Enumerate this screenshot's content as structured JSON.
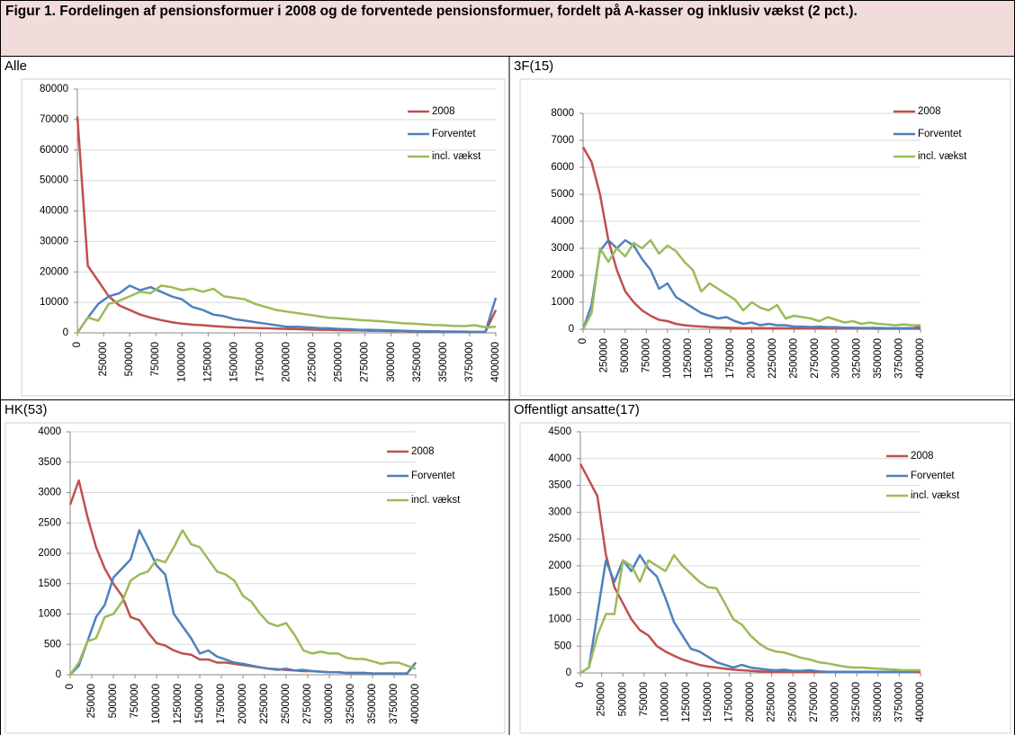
{
  "figure_title": "Figur 1. Fordelingen af pensionsformuer i 2008 og de forventede pensionsformuer, fordelt på A-kasser og inklusiv vækst (2 pct.).",
  "chart_data": [
    {
      "type": "line",
      "title": "Alle",
      "grid": true,
      "legend": "right",
      "x": [
        0,
        100000,
        200000,
        300000,
        400000,
        500000,
        600000,
        700000,
        800000,
        900000,
        1000000,
        1100000,
        1200000,
        1300000,
        1400000,
        1500000,
        1600000,
        1700000,
        1800000,
        1900000,
        2000000,
        2100000,
        2200000,
        2300000,
        2400000,
        2500000,
        2600000,
        2700000,
        2800000,
        2900000,
        3000000,
        3100000,
        3200000,
        3300000,
        3400000,
        3500000,
        3600000,
        3700000,
        3800000,
        3900000,
        4000000
      ],
      "xlim": [
        0,
        4000000
      ],
      "xticks": [
        0,
        250000,
        500000,
        750000,
        1000000,
        1250000,
        1500000,
        1750000,
        2000000,
        2250000,
        2500000,
        2750000,
        3000000,
        3250000,
        3500000,
        3750000,
        4000000
      ],
      "ylim": [
        0,
        80000
      ],
      "yticks": [
        0,
        10000,
        20000,
        30000,
        40000,
        50000,
        60000,
        70000,
        80000
      ],
      "series": [
        {
          "name": "2008",
          "color": "#c0504d",
          "values": [
            71000,
            22000,
            17000,
            12000,
            9000,
            7500,
            6000,
            5000,
            4200,
            3500,
            3000,
            2700,
            2500,
            2200,
            2000,
            1800,
            1700,
            1600,
            1500,
            1400,
            1300,
            1200,
            1100,
            1000,
            1000,
            900,
            800,
            800,
            700,
            700,
            600,
            600,
            500,
            500,
            500,
            400,
            400,
            400,
            300,
            300,
            7500
          ]
        },
        {
          "name": "Forventet",
          "color": "#4f81bd",
          "values": [
            0,
            5000,
            9500,
            12000,
            13000,
            15500,
            14000,
            15000,
            13500,
            12000,
            11000,
            8500,
            7500,
            6000,
            5500,
            4500,
            4000,
            3500,
            3000,
            2500,
            2000,
            2000,
            1800,
            1600,
            1500,
            1300,
            1200,
            1000,
            1000,
            900,
            800,
            700,
            600,
            500,
            500,
            400,
            400,
            300,
            300,
            300,
            11500
          ]
        },
        {
          "name": "incl. vækst",
          "color": "#9bbb59",
          "values": [
            0,
            5000,
            4000,
            9500,
            10500,
            12000,
            13500,
            13000,
            15500,
            15000,
            14000,
            14500,
            13500,
            14500,
            12000,
            11500,
            11000,
            9500,
            8500,
            7500,
            7000,
            6500,
            6000,
            5500,
            5000,
            4800,
            4500,
            4200,
            4000,
            3800,
            3500,
            3200,
            3000,
            2800,
            2600,
            2500,
            2300,
            2200,
            2500,
            1800,
            2000
          ]
        }
      ]
    },
    {
      "type": "line",
      "title": "3F(15)",
      "grid": true,
      "legend": "right",
      "x": [
        0,
        100000,
        200000,
        300000,
        400000,
        500000,
        600000,
        700000,
        800000,
        900000,
        1000000,
        1100000,
        1200000,
        1300000,
        1400000,
        1500000,
        1600000,
        1700000,
        1800000,
        1900000,
        2000000,
        2100000,
        2200000,
        2300000,
        2400000,
        2500000,
        2600000,
        2700000,
        2800000,
        2900000,
        3000000,
        3100000,
        3200000,
        3300000,
        3400000,
        3500000,
        3600000,
        3700000,
        3800000,
        3900000,
        4000000
      ],
      "xlim": [
        0,
        4000000
      ],
      "xticks": [
        0,
        250000,
        500000,
        750000,
        1000000,
        1250000,
        1500000,
        1750000,
        2000000,
        2250000,
        2500000,
        2750000,
        3000000,
        3250000,
        3500000,
        3750000,
        4000000
      ],
      "ylim": [
        0,
        8000
      ],
      "yticks": [
        0,
        1000,
        2000,
        3000,
        4000,
        5000,
        6000,
        7000,
        8000
      ],
      "series": [
        {
          "name": "2008",
          "color": "#c0504d",
          "values": [
            6750,
            6200,
            5000,
            3300,
            2200,
            1400,
            1000,
            700,
            500,
            350,
            300,
            200,
            150,
            120,
            100,
            80,
            70,
            60,
            50,
            40,
            40,
            40,
            35,
            35,
            35,
            30,
            30,
            30,
            30,
            30,
            25,
            25,
            25,
            25,
            25,
            20,
            20,
            20,
            20,
            20,
            20
          ]
        },
        {
          "name": "Forventet",
          "color": "#4f81bd",
          "values": [
            0,
            900,
            2900,
            3300,
            3000,
            3300,
            3100,
            2600,
            2200,
            1500,
            1700,
            1200,
            1000,
            800,
            600,
            500,
            400,
            450,
            300,
            200,
            250,
            150,
            200,
            150,
            150,
            100,
            100,
            80,
            100,
            80,
            80,
            60,
            60,
            50,
            50,
            50,
            40,
            40,
            40,
            40,
            100
          ]
        },
        {
          "name": "incl. vækst",
          "color": "#9bbb59",
          "values": [
            0,
            600,
            3000,
            2500,
            3000,
            2700,
            3200,
            3000,
            3300,
            2800,
            3100,
            2900,
            2500,
            2200,
            1400,
            1700,
            1500,
            1300,
            1100,
            700,
            1000,
            800,
            700,
            900,
            400,
            500,
            450,
            400,
            300,
            450,
            350,
            250,
            300,
            200,
            250,
            200,
            180,
            150,
            180,
            150,
            150
          ]
        }
      ]
    },
    {
      "type": "line",
      "title": "HK(53)",
      "grid": true,
      "legend": "right",
      "x": [
        0,
        100000,
        200000,
        300000,
        400000,
        500000,
        600000,
        700000,
        800000,
        900000,
        1000000,
        1100000,
        1200000,
        1300000,
        1400000,
        1500000,
        1600000,
        1700000,
        1800000,
        1900000,
        2000000,
        2100000,
        2200000,
        2300000,
        2400000,
        2500000,
        2600000,
        2700000,
        2800000,
        2900000,
        3000000,
        3100000,
        3200000,
        3300000,
        3400000,
        3500000,
        3600000,
        3700000,
        3800000,
        3900000,
        4000000
      ],
      "xlim": [
        0,
        4000000
      ],
      "xticks": [
        0,
        250000,
        500000,
        750000,
        1000000,
        1250000,
        1500000,
        1750000,
        2000000,
        2250000,
        2500000,
        2750000,
        3000000,
        3250000,
        3500000,
        3750000,
        4000000
      ],
      "ylim": [
        0,
        4000
      ],
      "yticks": [
        0,
        500,
        1000,
        1500,
        2000,
        2500,
        3000,
        3500,
        4000
      ],
      "series": [
        {
          "name": "2008",
          "color": "#c0504d",
          "values": [
            2800,
            3200,
            2600,
            2100,
            1750,
            1500,
            1300,
            950,
            900,
            700,
            520,
            480,
            400,
            350,
            330,
            250,
            250,
            200,
            200,
            180,
            160,
            140,
            120,
            100,
            90,
            80,
            70,
            60,
            60,
            50,
            40,
            40,
            30,
            30,
            30,
            20,
            20,
            20,
            20,
            20,
            200
          ]
        },
        {
          "name": "Forventet",
          "color": "#4f81bd",
          "values": [
            0,
            150,
            550,
            950,
            1150,
            1600,
            1750,
            1900,
            2380,
            2100,
            1800,
            1650,
            1000,
            800,
            600,
            350,
            400,
            300,
            250,
            200,
            180,
            150,
            120,
            100,
            80,
            100,
            70,
            80,
            60,
            50,
            40,
            40,
            30,
            30,
            30,
            20,
            20,
            20,
            20,
            20,
            200
          ]
        },
        {
          "name": "incl. vækst",
          "color": "#9bbb59",
          "values": [
            0,
            200,
            550,
            600,
            950,
            1000,
            1200,
            1550,
            1650,
            1700,
            1900,
            1850,
            2100,
            2380,
            2150,
            2100,
            1900,
            1700,
            1650,
            1550,
            1300,
            1200,
            1000,
            850,
            800,
            850,
            650,
            400,
            350,
            380,
            350,
            350,
            280,
            260,
            260,
            220,
            180,
            200,
            200,
            150,
            100
          ]
        }
      ]
    },
    {
      "type": "line",
      "title": "Offentligt ansatte(17)",
      "grid": true,
      "legend": "right",
      "x": [
        0,
        100000,
        200000,
        300000,
        400000,
        500000,
        600000,
        700000,
        800000,
        900000,
        1000000,
        1100000,
        1200000,
        1300000,
        1400000,
        1500000,
        1600000,
        1700000,
        1800000,
        1900000,
        2000000,
        2100000,
        2200000,
        2300000,
        2400000,
        2500000,
        2600000,
        2700000,
        2800000,
        2900000,
        3000000,
        3100000,
        3200000,
        3300000,
        3400000,
        3500000,
        3600000,
        3700000,
        3800000,
        3900000,
        4000000
      ],
      "xlim": [
        0,
        4000000
      ],
      "xticks": [
        0,
        250000,
        500000,
        750000,
        1000000,
        1250000,
        1500000,
        1750000,
        2000000,
        2250000,
        2500000,
        2750000,
        3000000,
        3250000,
        3500000,
        3750000,
        4000000
      ],
      "ylim": [
        0,
        4500
      ],
      "yticks": [
        0,
        500,
        1000,
        1500,
        2000,
        2500,
        3000,
        3500,
        4000,
        4500
      ],
      "series": [
        {
          "name": "2008",
          "color": "#c0504d",
          "values": [
            3900,
            3600,
            3300,
            2200,
            1600,
            1300,
            1000,
            800,
            700,
            500,
            400,
            320,
            250,
            200,
            150,
            120,
            100,
            80,
            60,
            50,
            40,
            30,
            20,
            20,
            20,
            20,
            20,
            20,
            20,
            20,
            20,
            20,
            20,
            20,
            20,
            20,
            20,
            20,
            20,
            20,
            20
          ]
        },
        {
          "name": "Forventet",
          "color": "#4f81bd",
          "values": [
            0,
            100,
            1100,
            2100,
            1700,
            2100,
            1900,
            2200,
            1950,
            1800,
            1400,
            950,
            700,
            450,
            400,
            300,
            200,
            150,
            100,
            150,
            100,
            80,
            60,
            50,
            60,
            40,
            40,
            50,
            30,
            20,
            20,
            20,
            20,
            20,
            20,
            20,
            20,
            20,
            20,
            20,
            50
          ]
        },
        {
          "name": "incl. vækst",
          "color": "#9bbb59",
          "values": [
            0,
            100,
            700,
            1100,
            1100,
            2100,
            2000,
            1700,
            2100,
            2000,
            1900,
            2200,
            2000,
            1850,
            1700,
            1600,
            1580,
            1300,
            1000,
            900,
            700,
            550,
            450,
            400,
            380,
            330,
            280,
            250,
            200,
            180,
            150,
            120,
            100,
            100,
            90,
            80,
            70,
            60,
            50,
            50,
            50
          ]
        }
      ]
    }
  ]
}
